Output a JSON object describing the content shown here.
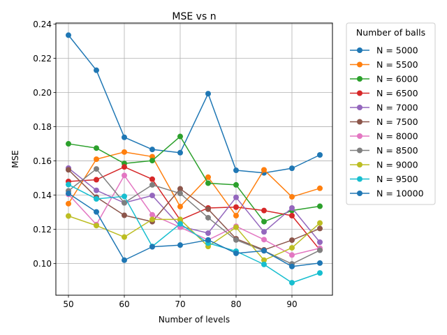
{
  "chart_data": {
    "type": "line",
    "title": "MSE vs n",
    "xlabel": "Number of levels",
    "ylabel": "MSE",
    "x": [
      50,
      55,
      60,
      65,
      70,
      75,
      80,
      85,
      90,
      95
    ],
    "xlim": [
      47.75,
      97.25
    ],
    "ylim": [
      0.0815,
      0.2406
    ],
    "xticks": [
      50,
      60,
      70,
      80,
      90
    ],
    "xtick_labels": [
      "50",
      "60",
      "70",
      "80",
      "90"
    ],
    "yticks": [
      0.1,
      0.12,
      0.14,
      0.16,
      0.18,
      0.2,
      0.22,
      0.24
    ],
    "ytick_labels": [
      "0.10",
      "0.12",
      "0.14",
      "0.16",
      "0.18",
      "0.20",
      "0.22",
      "0.24"
    ],
    "grid": true,
    "legend_title": "Number of balls",
    "legend_position": "outside-right",
    "series": [
      {
        "name": "N = 5000",
        "color": "#1f77b4",
        "values": [
          0.2335,
          0.213,
          0.1738,
          0.1667,
          0.1648,
          0.1993,
          0.1545,
          0.153,
          0.1557,
          0.1635
        ]
      },
      {
        "name": "N = 5500",
        "color": "#ff7f0e",
        "values": [
          0.135,
          0.161,
          0.1652,
          0.1625,
          0.1333,
          0.1505,
          0.128,
          0.1548,
          0.139,
          0.144
        ]
      },
      {
        "name": "N = 6000",
        "color": "#2ca02c",
        "values": [
          0.17,
          0.1675,
          0.1585,
          0.1602,
          0.1743,
          0.147,
          0.146,
          0.1245,
          0.131,
          0.1335
        ]
      },
      {
        "name": "N = 6500",
        "color": "#d62728",
        "values": [
          0.148,
          0.149,
          0.1565,
          0.1493,
          0.1255,
          0.1325,
          0.133,
          0.131,
          0.128,
          0.108
        ]
      },
      {
        "name": "N = 7000",
        "color": "#9467bd",
        "values": [
          0.1558,
          0.1428,
          0.1355,
          0.1398,
          0.1218,
          0.1178,
          0.1387,
          0.1185,
          0.1325,
          0.1125
        ]
      },
      {
        "name": "N = 7500",
        "color": "#8c564b",
        "values": [
          0.1548,
          0.1388,
          0.1282,
          0.1245,
          0.1437,
          0.1318,
          0.1145,
          0.108,
          0.1137,
          0.1205
        ]
      },
      {
        "name": "N = 8000",
        "color": "#e377c2",
        "values": [
          0.1405,
          0.1228,
          0.1515,
          0.1285,
          0.1212,
          0.1138,
          0.1218,
          0.114,
          0.105,
          0.109
        ]
      },
      {
        "name": "N = 8500",
        "color": "#7f7f7f",
        "values": [
          0.1425,
          0.1553,
          0.1355,
          0.146,
          0.141,
          0.1268,
          0.1138,
          0.1075,
          0.0998,
          0.1078
        ]
      },
      {
        "name": "N = 9000",
        "color": "#bcbd22",
        "values": [
          0.1278,
          0.1222,
          0.1155,
          0.1258,
          0.1258,
          0.11,
          0.1212,
          0.102,
          0.1092,
          0.1237
        ]
      },
      {
        "name": "N = 9500",
        "color": "#17becf",
        "values": [
          0.1462,
          0.1378,
          0.1393,
          0.11,
          0.1232,
          0.112,
          0.1072,
          0.0995,
          0.0888,
          0.0945
        ]
      },
      {
        "name": "N = 10000",
        "color": "#1f77b4",
        "values": [
          0.141,
          0.1302,
          0.102,
          0.1098,
          0.1108,
          0.1138,
          0.106,
          0.1075,
          0.0983,
          0.1003
        ]
      }
    ]
  }
}
